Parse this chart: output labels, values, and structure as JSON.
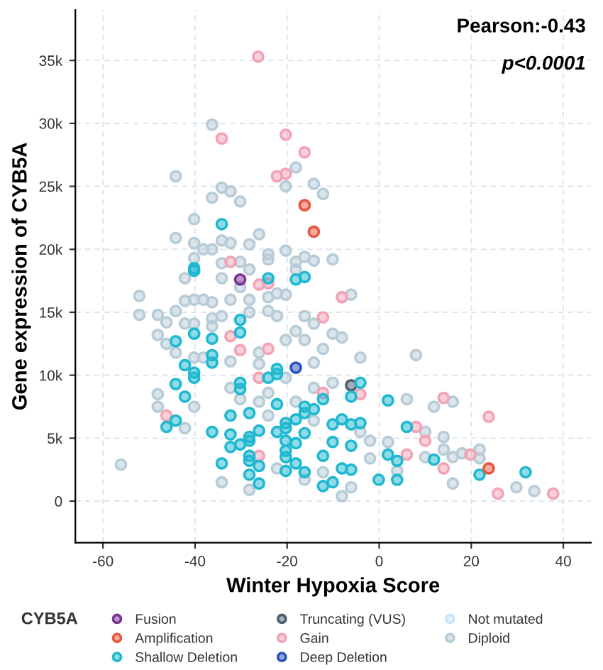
{
  "chart_data": {
    "type": "scatter",
    "xlabel": "Winter Hypoxia Score",
    "ylabel": "Gene expression of CYB5A",
    "legend_title": "CYB5A",
    "legend": "bottom",
    "grid": true,
    "marker": "circle",
    "annotations": [
      "Pearson:-0.43",
      "p<0.0001"
    ],
    "xlim": [
      -66,
      46
    ],
    "xticks": [
      -60,
      -40,
      -20,
      0,
      20,
      40
    ],
    "ylim": [
      -3300,
      39000
    ],
    "yticks": [
      0,
      {
        "value": 5000,
        "label": "5k"
      },
      {
        "value": 10000,
        "label": "10k"
      },
      {
        "value": 15000,
        "label": "15k"
      },
      {
        "value": 20000,
        "label": "20k"
      },
      {
        "value": 25000,
        "label": "25k"
      },
      {
        "value": 30000,
        "label": "30k"
      },
      {
        "value": 35000,
        "label": "35k"
      }
    ],
    "series": [
      {
        "name": "Fusion",
        "color": "#7b3294",
        "x": [
          -30.2
        ],
        "values": [
          17600
        ]
      },
      {
        "name": "Amplification",
        "color": "#e8563f",
        "x": [
          -16.2,
          -14.2,
          23.8
        ],
        "values": [
          23500,
          21400,
          2600
        ]
      },
      {
        "name": "Shallow Deletion",
        "color": "#1fb8d0",
        "x": [
          -34.2,
          -40.2,
          -40.2,
          -24.1,
          -18.1,
          -16.2,
          -30.2,
          -30.2,
          -44.2,
          -40.2,
          -36.3,
          -36.3,
          -36.3,
          -42.2,
          -40.2,
          -40.2,
          -22.2,
          -22.2,
          -24.1,
          -44.2,
          -30.2,
          -30.2,
          -42.2,
          -4.1,
          -6.1,
          -12.2,
          -22.2,
          -28.2,
          -16.2,
          -16.2,
          -14.2,
          -32.3,
          -18.1,
          -8.1,
          -20.3,
          -20.3,
          -6.1,
          -4.1,
          -10.1,
          -44.2,
          -46.2,
          -36.3,
          -26.1,
          -22.2,
          -32.3,
          -28.2,
          -16.2,
          1.9,
          6.0,
          -30.2,
          -32.3,
          -28.2,
          -20.3,
          -18.1,
          -10.1,
          -6.1,
          -20.3,
          -20.3,
          -28.2,
          -28.2,
          -34.2,
          -18.1,
          -12.2,
          -26.1,
          -28.2,
          -20.3,
          -16.2,
          -8.1,
          -6.1,
          -26.1,
          -12.2,
          -10.1,
          1.9,
          3.9,
          -0.1,
          3.9,
          11.9,
          21.8,
          31.8
        ],
        "values": [
          22000,
          18500,
          18300,
          17700,
          17600,
          17800,
          14400,
          13400,
          12700,
          13300,
          12900,
          11600,
          11000,
          10800,
          10200,
          9800,
          10500,
          10100,
          9800,
          9300,
          9400,
          8900,
          8300,
          9400,
          8300,
          8100,
          7700,
          7000,
          7500,
          7000,
          7300,
          6800,
          6500,
          6500,
          6200,
          5800,
          6100,
          6200,
          6100,
          6400,
          5900,
          5500,
          5600,
          5500,
          5300,
          5100,
          5400,
          8000,
          5900,
          4500,
          4300,
          4800,
          4800,
          4600,
          4700,
          4400,
          4000,
          3500,
          3600,
          3200,
          3000,
          3000,
          3600,
          2800,
          2100,
          2400,
          2300,
          2600,
          2500,
          1400,
          1200,
          1500,
          3700,
          3200,
          1700,
          1700,
          3300,
          2100,
          2300
        ]
      },
      {
        "name": "Truncating (VUS)",
        "color": "#4d5e6e",
        "x": [
          -6.1
        ],
        "values": [
          9200
        ]
      },
      {
        "name": "Gain",
        "color": "#f3a3b5",
        "x": [
          -26.3,
          -34.2,
          -20.3,
          -16.2,
          -22.2,
          -20.3,
          -32.3,
          -26.1,
          -24.1,
          -8.1,
          -12.2,
          -32.3,
          -30.2,
          -24.1,
          -26.1,
          -12.2,
          -4.1,
          -46.2,
          -26.1,
          8.0,
          10.0,
          6.0,
          14.0,
          23.8,
          14.0,
          19.8,
          25.8,
          37.8
        ],
        "values": [
          35300,
          28800,
          29100,
          27700,
          25800,
          26000,
          19000,
          17200,
          17300,
          16200,
          14600,
          13100,
          12000,
          12100,
          9800,
          8600,
          8500,
          6800,
          3600,
          5900,
          4800,
          3700,
          8200,
          6700,
          2600,
          3700,
          600,
          600
        ]
      },
      {
        "name": "Deep Deletion",
        "color": "#2a52be",
        "x": [
          -18.1
        ],
        "values": [
          10600
        ]
      },
      {
        "name": "Not mutated",
        "color": "#c6e6f7"
      },
      {
        "name": "Diploid",
        "color": "#b8ccd8",
        "x": [
          -36.3,
          -44.2,
          -34.2,
          -36.3,
          -32.3,
          -30.2,
          -18.1,
          -20.3,
          -14.2,
          -12.2,
          -40.2,
          -44.2,
          -40.2,
          -34.2,
          -32.3,
          -28.2,
          -26.1,
          -38.2,
          -36.3,
          -24.1,
          -20.3,
          -16.2,
          -10.1,
          -40.2,
          -34.2,
          -30.2,
          -18.1,
          -14.2,
          -28.2,
          -18.1,
          -52.1,
          -52.1,
          -56.1,
          -48.1,
          -48.1,
          -46.2,
          -46.2,
          -44.2,
          -44.2,
          -42.2,
          -42.2,
          -42.2,
          -40.2,
          -40.2,
          -40.2,
          -38.2,
          -38.2,
          -36.3,
          -36.3,
          -36.3,
          -34.2,
          -34.2,
          -32.3,
          -32.3,
          -30.2,
          -28.2,
          -28.2,
          -26.1,
          -26.1,
          -24.1,
          -24.1,
          -24.1,
          -22.2,
          -22.2,
          -20.3,
          -20.3,
          -18.1,
          -16.2,
          -16.2,
          -14.2,
          -14.2,
          -12.2,
          -10.1,
          -8.1,
          -4.1,
          -6.1,
          8.0,
          -48.1,
          -48.1,
          -42.2,
          -40.2,
          -34.2,
          -32.3,
          -30.2,
          -24.1,
          -24.1,
          -18.1,
          -14.2,
          -12.2,
          -8.1,
          -6.1,
          -4.1,
          -2.0,
          1.9,
          6.0,
          10.0,
          11.9,
          14.0,
          16.0,
          14.0,
          16.0,
          18.0,
          21.8,
          21.8,
          16.0,
          29.8,
          33.7,
          10.0,
          3.9,
          -16.2,
          -28.2,
          -22.2,
          -2.0,
          -26.1,
          -20.3,
          -14.2,
          -10.1
        ],
        "values": [
          29900,
          25800,
          24900,
          24100,
          24600,
          23800,
          26500,
          25000,
          25200,
          24400,
          22400,
          20900,
          20500,
          20700,
          20500,
          20400,
          21200,
          20000,
          20000,
          19600,
          19900,
          19400,
          19200,
          19300,
          18900,
          19000,
          19000,
          19100,
          18400,
          18400,
          16300,
          14800,
          2900,
          14800,
          13200,
          14200,
          12500,
          15100,
          11800,
          17700,
          15900,
          14100,
          16000,
          14100,
          11400,
          11400,
          16000,
          15800,
          14500,
          13900,
          14700,
          17700,
          16000,
          11100,
          17000,
          16000,
          15000,
          11800,
          10900,
          19200,
          16200,
          15100,
          16500,
          14700,
          16400,
          12800,
          13500,
          14700,
          12800,
          14100,
          11000,
          12100,
          13300,
          13000,
          11400,
          16400,
          11600,
          8500,
          7500,
          5800,
          7500,
          1500,
          9000,
          8100,
          6800,
          8600,
          7900,
          6400,
          2300,
          400,
          1100,
          5500,
          4800,
          4700,
          8100,
          5500,
          7500,
          5100,
          7900,
          4100,
          3500,
          3800,
          4100,
          3400,
          1400,
          1100,
          800,
          3500,
          2400,
          1700,
          900,
          2600,
          3400,
          7900,
          9800,
          9000,
          9400
        ]
      }
    ]
  }
}
